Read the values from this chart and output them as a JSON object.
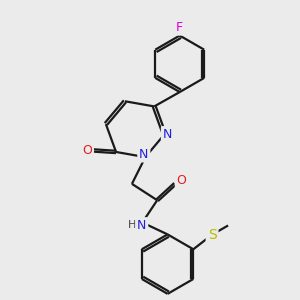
{
  "background_color": "#ebebeb",
  "bond_color": "#1a1a1a",
  "n_color": "#2020dd",
  "o_color": "#dd2020",
  "f_color": "#dd00dd",
  "s_color": "#bbbb00",
  "line_width": 1.6,
  "figsize": [
    3.0,
    3.0
  ],
  "dpi": 100,
  "xlim": [
    0,
    10
  ],
  "ylim": [
    0,
    10
  ]
}
